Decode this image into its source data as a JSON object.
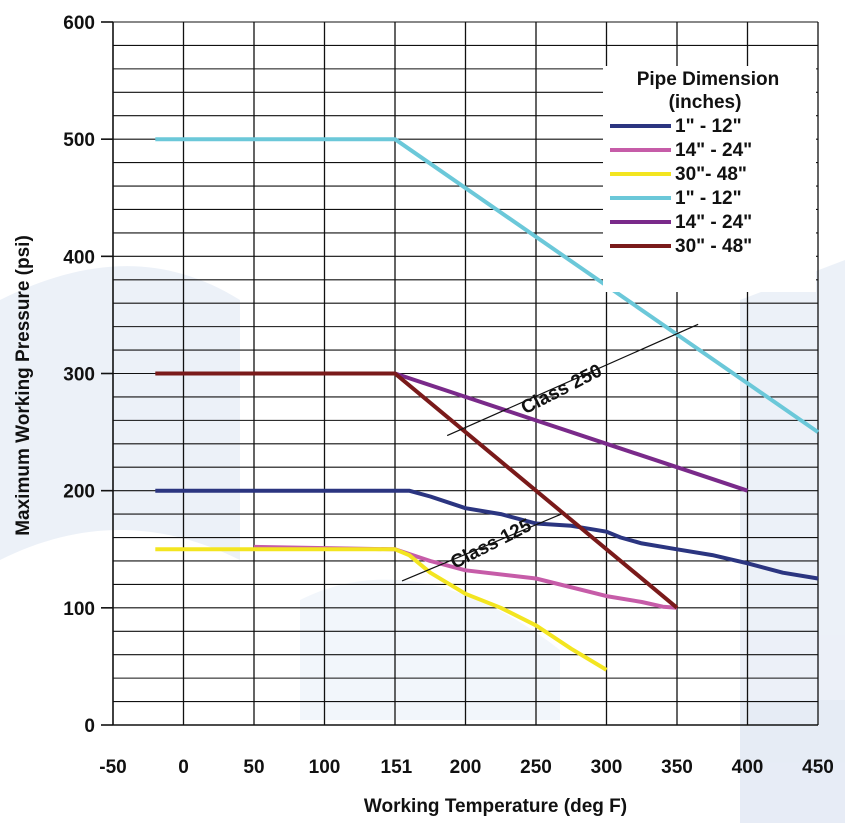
{
  "chart_data": {
    "type": "line",
    "xlabel": "Working Temperature (deg F)",
    "ylabel": "Maximum Working Pressure (psi)",
    "xlim": [
      -50,
      450
    ],
    "ylim": [
      0,
      600
    ],
    "x_tick_labels": [
      "-50",
      "0",
      "50",
      "100",
      "151",
      "200",
      "250",
      "300",
      "350",
      "400",
      "450"
    ],
    "y_tick_labels": [
      "0",
      "100",
      "200",
      "300",
      "400",
      "500",
      "600"
    ],
    "grid": true,
    "legend": {
      "title_line1": "Pipe Dimension",
      "title_line2": "(inches)",
      "placement": "top-right"
    },
    "annotations": [
      {
        "text": "Class 250",
        "x": 270,
        "y": 285
      },
      {
        "text": "Class 125",
        "x": 240,
        "y": 160
      }
    ],
    "series": [
      {
        "name": "1\" - 12\"",
        "color": "#2b3580",
        "points": [
          [
            -20,
            200
          ],
          [
            150,
            200
          ],
          [
            160,
            200
          ],
          [
            175,
            195
          ],
          [
            200,
            185
          ],
          [
            225,
            180
          ],
          [
            250,
            172
          ],
          [
            275,
            170
          ],
          [
            300,
            165
          ],
          [
            310,
            160
          ],
          [
            325,
            155
          ],
          [
            350,
            150
          ],
          [
            375,
            145
          ],
          [
            400,
            138
          ],
          [
            425,
            130
          ],
          [
            450,
            125
          ]
        ]
      },
      {
        "name": "14\" - 24\"",
        "color": "#c65ca8",
        "points": [
          [
            50,
            152
          ],
          [
            150,
            150
          ],
          [
            175,
            140
          ],
          [
            200,
            132
          ],
          [
            250,
            125
          ],
          [
            300,
            110
          ],
          [
            325,
            105
          ],
          [
            340,
            101
          ],
          [
            350,
            100
          ]
        ]
      },
      {
        "name": "30\"- 48\"",
        "color": "#f3e520",
        "points": [
          [
            -20,
            150
          ],
          [
            150,
            150
          ],
          [
            160,
            145
          ],
          [
            175,
            130
          ],
          [
            200,
            112
          ],
          [
            225,
            100
          ],
          [
            250,
            85
          ],
          [
            275,
            65
          ],
          [
            300,
            47
          ]
        ]
      },
      {
        "name": "1\" - 12\"",
        "color": "#6bc8d9",
        "points": [
          [
            -20,
            500
          ],
          [
            150,
            500
          ],
          [
            450,
            250
          ]
        ]
      },
      {
        "name": "14\" - 24\"",
        "color": "#7a2a8a",
        "points": [
          [
            150,
            300
          ],
          [
            200,
            280
          ],
          [
            250,
            260
          ],
          [
            300,
            240
          ],
          [
            350,
            220
          ],
          [
            400,
            200
          ]
        ]
      },
      {
        "name": "30\" - 48\"",
        "color": "#7a1a1a",
        "points": [
          [
            -20,
            300
          ],
          [
            150,
            300
          ],
          [
            350,
            100
          ]
        ]
      }
    ]
  }
}
